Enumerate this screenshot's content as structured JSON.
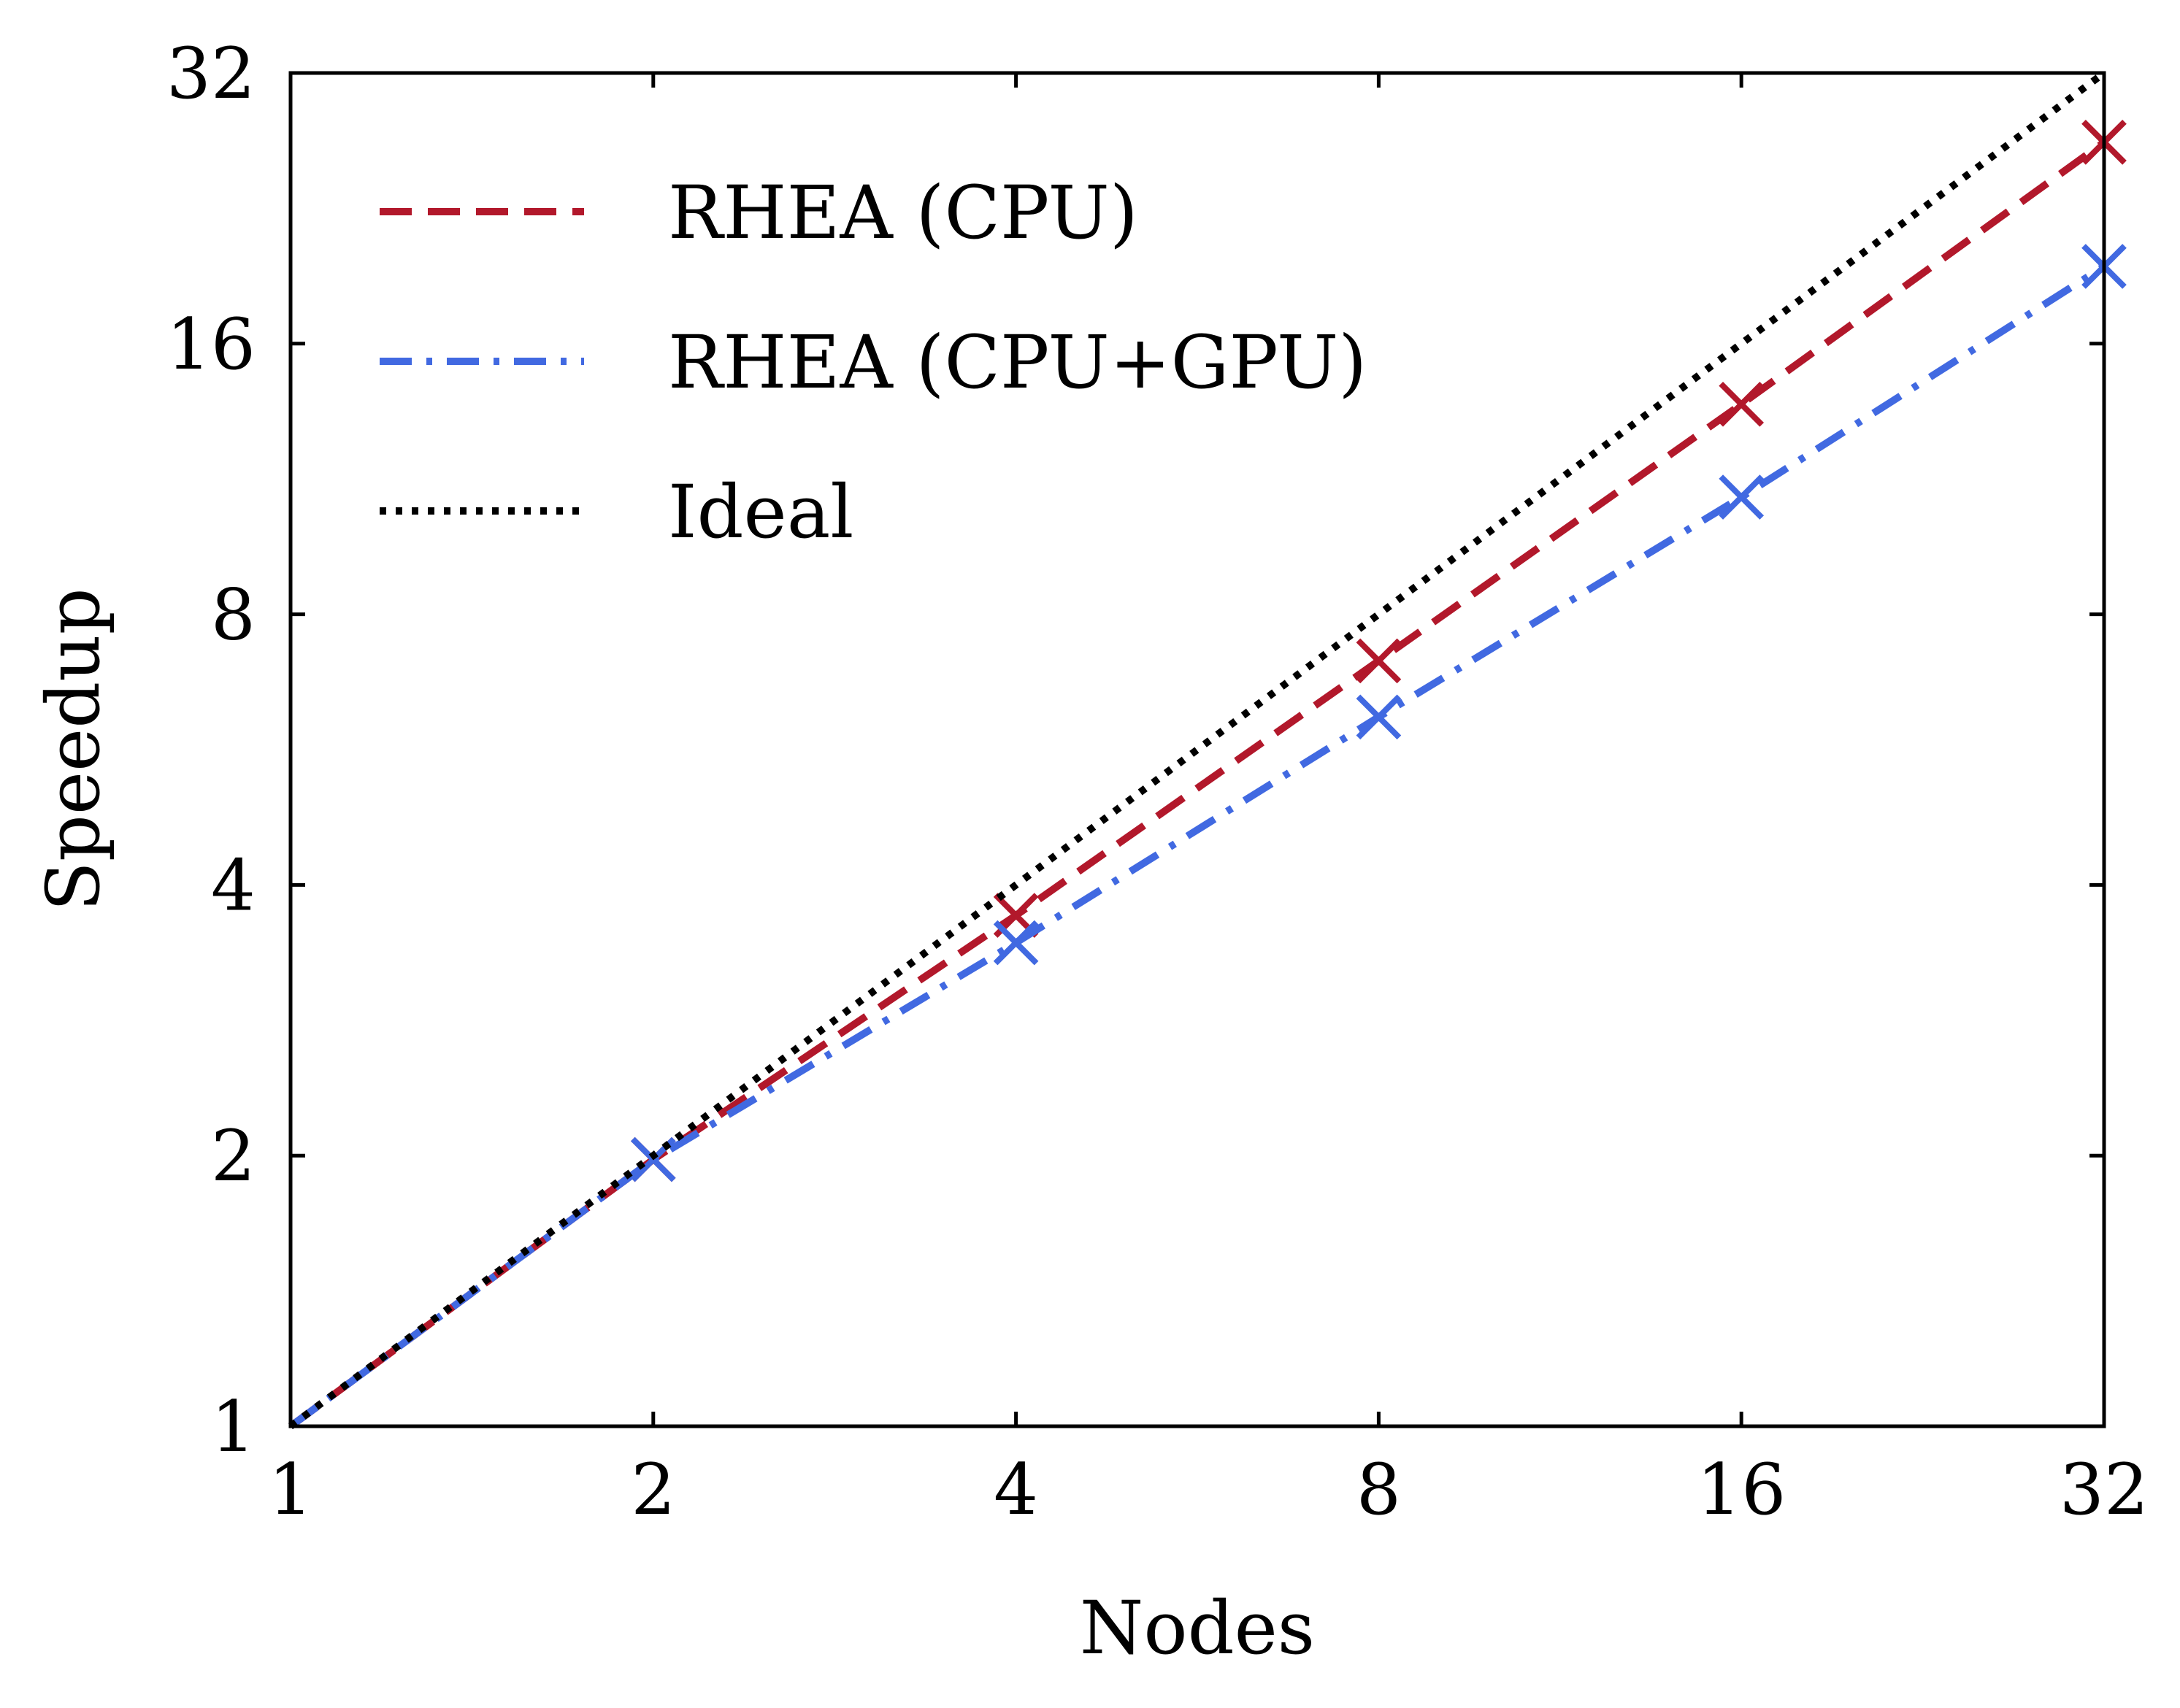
{
  "chart_data": {
    "type": "line",
    "xlabel": "Nodes",
    "ylabel": "Speedup",
    "x_scale": "log2",
    "y_scale": "log2",
    "xlim": [
      1,
      32
    ],
    "ylim": [
      1,
      32
    ],
    "x_ticks": [
      "1",
      "2",
      "4",
      "8",
      "16",
      "32"
    ],
    "y_ticks": [
      "1",
      "2",
      "4",
      "8",
      "16",
      "32"
    ],
    "grid": false,
    "legend_position": "top-left",
    "series": [
      {
        "name": "RHEA (CPU)",
        "color": "#b2182b",
        "dash": "dashed",
        "marker": "x",
        "x": [
          1,
          2,
          4,
          8,
          16,
          32
        ],
        "y": [
          1,
          1.98,
          3.7,
          7.1,
          13.7,
          26.8
        ]
      },
      {
        "name": "RHEA (CPU+GPU)",
        "color": "#4169e1",
        "dash": "dash-dot",
        "marker": "x",
        "x": [
          1,
          2,
          4,
          8,
          16,
          32
        ],
        "y": [
          1,
          1.98,
          3.45,
          6.15,
          10.8,
          19.5
        ]
      },
      {
        "name": "Ideal",
        "color": "#000000",
        "dash": "dotted",
        "marker": "none",
        "x": [
          1,
          2,
          4,
          8,
          16,
          32
        ],
        "y": [
          1,
          2,
          4,
          8,
          16,
          32
        ]
      }
    ]
  }
}
